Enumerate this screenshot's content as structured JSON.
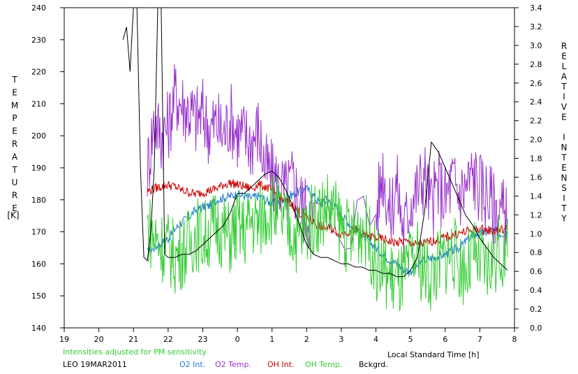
{
  "chart_data": {
    "type": "line",
    "ylabel_left": "TEMPERATURE",
    "ylabel_left_unit": "[K]",
    "ylabel_right": "RELATIVE INTENSITY",
    "xlabel": "Local Standard Time [h]",
    "note": "Intensities adjusted for PM sensitivity",
    "site_date": "LEO 19MAR2011",
    "x_tick_labels": [
      "19",
      "20",
      "21",
      "22",
      "23",
      "0",
      "1",
      "2",
      "3",
      "4",
      "5",
      "6",
      "7",
      "8"
    ],
    "y_left_ticks": [
      140,
      150,
      160,
      170,
      180,
      190,
      200,
      210,
      220,
      230,
      240
    ],
    "y_right_ticks": [
      "0.0",
      "0.2",
      "0.4",
      "0.6",
      "0.8",
      "1.0",
      "1.2",
      "1.4",
      "1.6",
      "1.8",
      "2.0",
      "2.2",
      "2.4",
      "2.6",
      "2.8",
      "3.0",
      "3.2",
      "3.4"
    ],
    "xlim": [
      19,
      32
    ],
    "ylim_left": [
      140,
      240
    ],
    "ylim_right": [
      0,
      3.4
    ],
    "colors": {
      "o2_int": "#1f78d6",
      "o2_temp": "#9933cc",
      "oh_int": "#cc0000",
      "oh_temp": "#33cc33",
      "bckgrd": "#000000"
    },
    "series": [
      {
        "name": "O2 Int.",
        "axis": "right",
        "color": "#1f78d6",
        "x": [
          21.4,
          21.6,
          21.8,
          22.0,
          22.2,
          22.4,
          22.6,
          22.8,
          23.0,
          23.2,
          23.4,
          23.6,
          23.8,
          24.0,
          24.2,
          24.4,
          24.6,
          24.8,
          25.0,
          25.2,
          25.4,
          25.6,
          25.8,
          26.0,
          26.2,
          26.4,
          26.6,
          26.8,
          27.0,
          27.2,
          27.4,
          27.6,
          27.8,
          28.0,
          28.2,
          28.4,
          28.6,
          28.8,
          29.0,
          29.2,
          29.4,
          29.6,
          29.8,
          30.0,
          30.2,
          30.4,
          30.6,
          30.8,
          31.0,
          31.2,
          31.4,
          31.6,
          31.8
        ],
        "y": [
          0.8,
          0.85,
          0.9,
          0.95,
          1.05,
          1.12,
          1.18,
          1.25,
          1.28,
          1.3,
          1.36,
          1.38,
          1.4,
          1.42,
          1.4,
          1.38,
          1.4,
          1.36,
          1.32,
          1.34,
          1.38,
          1.42,
          1.45,
          1.48,
          1.4,
          1.32,
          1.34,
          1.3,
          1.2,
          1.12,
          1.05,
          0.98,
          0.92,
          0.85,
          0.78,
          0.72,
          0.68,
          0.62,
          0.6,
          0.66,
          0.72,
          0.74,
          0.76,
          0.78,
          0.82,
          0.85,
          0.92,
          0.98,
          1.0,
          1.02,
          1.04,
          1.0,
          1.02
        ]
      },
      {
        "name": "O2 Temp.",
        "axis": "left",
        "color": "#9933cc",
        "x": [
          21.4,
          21.6,
          21.8,
          22.0,
          22.2,
          22.4,
          22.6,
          22.8,
          23.0,
          23.2,
          23.4,
          23.6,
          23.8,
          24.0,
          24.2,
          24.4,
          24.6,
          24.8,
          25.0,
          25.2,
          25.4,
          25.6,
          25.8,
          26.0,
          26.2,
          28.0,
          28.2,
          28.4,
          28.6,
          28.8,
          29.0,
          29.2,
          29.4,
          29.6,
          29.8,
          30.0,
          30.2,
          30.4,
          30.6,
          30.8,
          31.0,
          31.2,
          31.4,
          31.6,
          31.8
        ],
        "y": [
          190,
          205,
          200,
          203,
          213,
          210,
          208,
          205,
          207,
          202,
          204,
          200,
          206,
          201,
          200,
          198,
          202,
          190,
          187,
          185,
          182,
          186,
          180,
          176,
          174,
          175,
          190,
          175,
          185,
          170,
          180,
          183,
          188,
          178,
          185,
          180,
          186,
          182,
          184,
          188,
          184,
          182,
          178,
          176,
          174
        ]
      },
      {
        "name": "OH Int.",
        "axis": "right",
        "color": "#cc0000",
        "x": [
          21.4,
          21.6,
          21.8,
          22.0,
          22.2,
          22.4,
          22.6,
          22.8,
          23.0,
          23.2,
          23.4,
          23.6,
          23.8,
          24.0,
          24.2,
          24.4,
          24.6,
          24.8,
          25.0,
          25.2,
          25.4,
          25.6,
          25.8,
          26.0,
          26.2,
          26.4,
          26.6,
          26.8,
          27.0,
          27.2,
          27.4,
          27.6,
          27.8,
          28.0,
          28.2,
          28.4,
          28.6,
          28.8,
          29.0,
          29.2,
          29.4,
          29.6,
          29.8,
          30.0,
          30.2,
          30.4,
          30.6,
          30.8,
          31.0,
          31.2,
          31.4,
          31.6,
          31.8
        ],
        "y": [
          1.45,
          1.48,
          1.5,
          1.52,
          1.5,
          1.46,
          1.44,
          1.42,
          1.44,
          1.46,
          1.48,
          1.52,
          1.54,
          1.52,
          1.5,
          1.48,
          1.52,
          1.5,
          1.46,
          1.4,
          1.34,
          1.3,
          1.22,
          1.18,
          1.12,
          1.08,
          1.06,
          1.04,
          1.0,
          1.02,
          1.04,
          1.0,
          0.98,
          0.96,
          0.94,
          0.92,
          0.9,
          0.92,
          0.9,
          0.88,
          0.9,
          0.92,
          0.94,
          0.96,
          0.98,
          1.0,
          1.02,
          1.04,
          1.05,
          1.04,
          1.03,
          1.04,
          1.05
        ]
      },
      {
        "name": "OH Temp.",
        "axis": "left",
        "color": "#33cc33",
        "x": [
          21.4,
          21.6,
          21.8,
          22.0,
          22.2,
          22.4,
          22.6,
          22.8,
          23.0,
          23.2,
          23.4,
          23.6,
          23.8,
          24.0,
          24.2,
          24.4,
          24.6,
          24.8,
          25.0,
          25.2,
          25.4,
          25.6,
          25.8,
          26.0,
          26.2,
          26.4,
          26.6,
          26.8,
          27.0,
          27.2,
          27.4,
          27.6,
          27.8,
          28.0,
          28.2,
          28.4,
          28.6,
          28.8,
          29.0,
          29.2,
          29.4,
          29.6,
          29.8,
          30.0,
          30.2,
          30.4,
          30.6,
          30.8,
          31.0,
          31.2,
          31.4,
          31.6,
          31.8
        ],
        "y": [
          172,
          168,
          166,
          165,
          162,
          164,
          166,
          170,
          168,
          170,
          172,
          170,
          168,
          172,
          170,
          174,
          172,
          176,
          178,
          175,
          172,
          170,
          168,
          172,
          174,
          176,
          178,
          175,
          172,
          168,
          170,
          172,
          168,
          160,
          158,
          156,
          154,
          155,
          160,
          162,
          158,
          156,
          160,
          162,
          164,
          160,
          158,
          162,
          160,
          158,
          162,
          164,
          162
        ]
      },
      {
        "name": "Bckgrd.",
        "axis": "left",
        "color": "#000000",
        "x": [
          20.7,
          20.8,
          20.9,
          21.0,
          21.1,
          21.2,
          21.3,
          21.4,
          21.5,
          21.6,
          21.7,
          21.8,
          21.9,
          22.0,
          22.1,
          22.2,
          22.4,
          22.6,
          22.8,
          23.0,
          23.2,
          23.4,
          23.6,
          23.8,
          24.0,
          24.2,
          24.4,
          24.6,
          24.8,
          25.0,
          25.2,
          25.4,
          25.6,
          25.8,
          26.0,
          26.2,
          26.4,
          26.6,
          26.8,
          27.0,
          27.2,
          27.4,
          27.6,
          27.8,
          28.0,
          28.2,
          28.4,
          28.6,
          28.8,
          29.0,
          29.2,
          29.4,
          29.6,
          29.8,
          30.0,
          30.2,
          30.4,
          30.6,
          30.8,
          31.0,
          31.2,
          31.4,
          31.6,
          31.8
        ],
        "y": [
          230,
          234,
          220,
          240,
          240,
          190,
          162,
          161,
          170,
          190,
          240,
          240,
          163,
          162,
          162,
          162,
          163,
          163,
          164,
          166,
          168,
          170,
          172,
          176,
          182,
          182,
          184,
          186,
          188,
          189,
          187,
          183,
          178,
          172,
          166,
          163,
          162,
          162,
          161,
          160,
          160,
          159,
          159,
          158,
          158,
          157,
          157,
          156,
          156,
          158,
          162,
          176,
          198,
          195,
          190,
          185,
          180,
          175,
          172,
          168,
          165,
          162,
          160,
          158
        ]
      }
    ]
  },
  "legend": [
    {
      "label": "O2 Int.",
      "color": "#1f78d6"
    },
    {
      "label": "O2 Temp.",
      "color": "#9933cc"
    },
    {
      "label": "OH Int.",
      "color": "#cc0000"
    },
    {
      "label": "OH Temp.",
      "color": "#33cc33"
    },
    {
      "label": "Bckgrd.",
      "color": "#000000"
    }
  ]
}
